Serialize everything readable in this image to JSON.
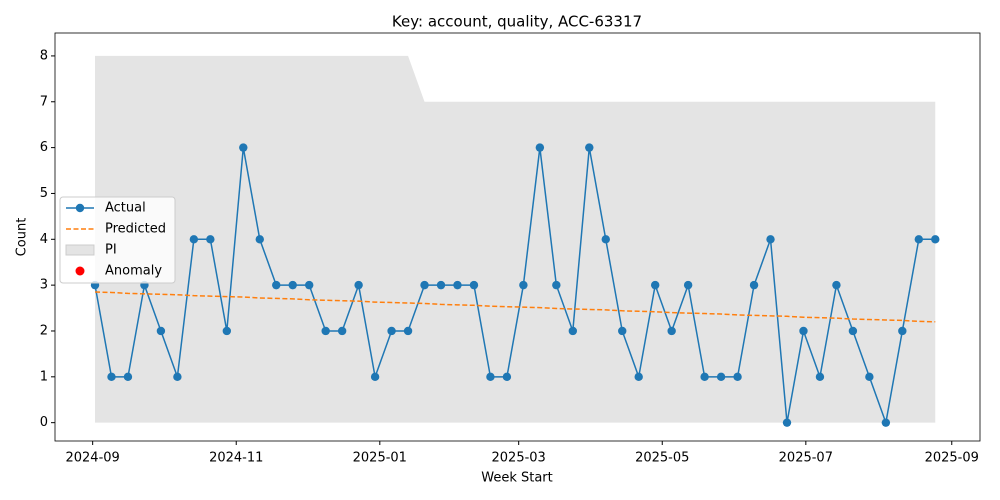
{
  "chart_data": {
    "type": "line",
    "title": "Key: account, quality, ACC-63317",
    "xlabel": "Week Start",
    "ylabel": "Count",
    "x": [
      "2024-09-02",
      "2024-09-09",
      "2024-09-16",
      "2024-09-23",
      "2024-09-30",
      "2024-10-07",
      "2024-10-14",
      "2024-10-21",
      "2024-10-28",
      "2024-11-04",
      "2024-11-11",
      "2024-11-18",
      "2024-11-25",
      "2024-12-02",
      "2024-12-09",
      "2024-12-16",
      "2024-12-23",
      "2024-12-30",
      "2025-01-06",
      "2025-01-13",
      "2025-01-20",
      "2025-01-27",
      "2025-02-03",
      "2025-02-10",
      "2025-02-17",
      "2025-02-24",
      "2025-03-03",
      "2025-03-10",
      "2025-03-17",
      "2025-03-24",
      "2025-03-31",
      "2025-04-07",
      "2025-04-14",
      "2025-04-21",
      "2025-04-28",
      "2025-05-05",
      "2025-05-12",
      "2025-05-19",
      "2025-05-26",
      "2025-06-02",
      "2025-06-09",
      "2025-06-16",
      "2025-06-23",
      "2025-06-30",
      "2025-07-07",
      "2025-07-14",
      "2025-07-21",
      "2025-07-28",
      "2025-08-04",
      "2025-08-11",
      "2025-08-18",
      "2025-08-25"
    ],
    "series": [
      {
        "name": "Actual",
        "color": "#1f77b4",
        "style": "solid-markers",
        "values": [
          3,
          1,
          1,
          3,
          2,
          1,
          4,
          4,
          2,
          6,
          4,
          3,
          3,
          3,
          2,
          2,
          3,
          1,
          2,
          2,
          3,
          3,
          3,
          3,
          1,
          1,
          3,
          6,
          3,
          2,
          6,
          4,
          2,
          1,
          3,
          2,
          3,
          1,
          1,
          1,
          3,
          4,
          0,
          2,
          1,
          3,
          2,
          1,
          0,
          2,
          4,
          4
        ]
      },
      {
        "name": "Predicted",
        "color": "#ff7f0e",
        "style": "dashed",
        "values": [
          2.85,
          2.84,
          2.82,
          2.81,
          2.8,
          2.79,
          2.77,
          2.76,
          2.75,
          2.74,
          2.72,
          2.71,
          2.7,
          2.68,
          2.67,
          2.66,
          2.65,
          2.63,
          2.62,
          2.61,
          2.6,
          2.58,
          2.57,
          2.56,
          2.54,
          2.53,
          2.52,
          2.51,
          2.49,
          2.48,
          2.47,
          2.46,
          2.44,
          2.43,
          2.42,
          2.4,
          2.39,
          2.38,
          2.37,
          2.35,
          2.34,
          2.33,
          2.32,
          2.3,
          2.29,
          2.28,
          2.26,
          2.25,
          2.24,
          2.23,
          2.21,
          2.2
        ]
      },
      {
        "name": "PI",
        "color": "#e4e4e4",
        "style": "band",
        "lower": [
          0,
          0,
          0,
          0,
          0,
          0,
          0,
          0,
          0,
          0,
          0,
          0,
          0,
          0,
          0,
          0,
          0,
          0,
          0,
          0,
          0,
          0,
          0,
          0,
          0,
          0,
          0,
          0,
          0,
          0,
          0,
          0,
          0,
          0,
          0,
          0,
          0,
          0,
          0,
          0,
          0,
          0,
          0,
          0,
          0,
          0,
          0,
          0,
          0,
          0,
          0,
          0
        ],
        "upper": [
          8,
          8,
          8,
          8,
          8,
          8,
          8,
          8,
          8,
          8,
          8,
          8,
          8,
          8,
          8,
          8,
          8,
          8,
          8,
          8,
          7,
          7,
          7,
          7,
          7,
          7,
          7,
          7,
          7,
          7,
          7,
          7,
          7,
          7,
          7,
          7,
          7,
          7,
          7,
          7,
          7,
          7,
          7,
          7,
          7,
          7,
          7,
          7,
          7,
          7,
          7,
          7
        ]
      },
      {
        "name": "Anomaly",
        "color": "#ff0000",
        "style": "scatter",
        "values": [
          null,
          null,
          null,
          null,
          null,
          null,
          null,
          null,
          null,
          null,
          null,
          null,
          null,
          null,
          null,
          null,
          null,
          null,
          null,
          null,
          null,
          null,
          null,
          null,
          null,
          null,
          null,
          null,
          null,
          null,
          null,
          null,
          null,
          null,
          null,
          null,
          null,
          null,
          null,
          null,
          null,
          null,
          null,
          null,
          null,
          null,
          null,
          null,
          null,
          null,
          null,
          null
        ]
      }
    ],
    "xlim": [
      "2024-08-16",
      "2025-09-13"
    ],
    "xticks": [
      {
        "value": "2024-09-01",
        "label": "2024-09"
      },
      {
        "value": "2024-11-01",
        "label": "2024-11"
      },
      {
        "value": "2025-01-01",
        "label": "2025-01"
      },
      {
        "value": "2025-03-01",
        "label": "2025-03"
      },
      {
        "value": "2025-05-01",
        "label": "2025-05"
      },
      {
        "value": "2025-07-01",
        "label": "2025-07"
      },
      {
        "value": "2025-09-01",
        "label": "2025-09"
      }
    ],
    "ylim": [
      -0.4,
      8.5
    ],
    "yticks": [
      0,
      1,
      2,
      3,
      4,
      5,
      6,
      7,
      8
    ],
    "grid": false,
    "legend": "center left"
  }
}
